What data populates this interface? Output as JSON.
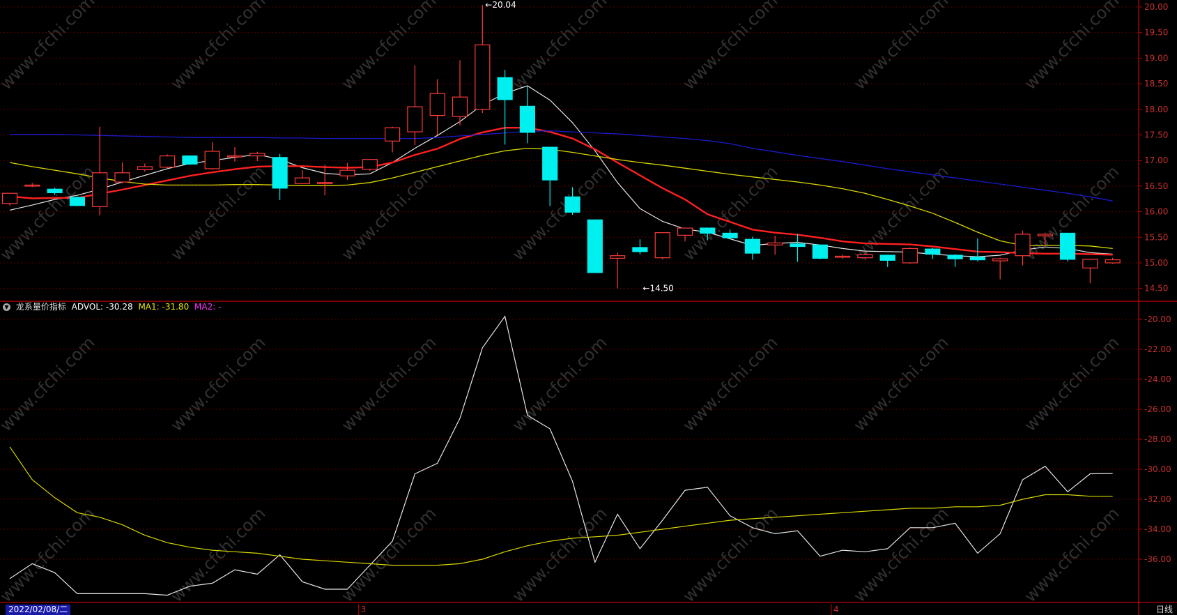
{
  "indicator": {
    "name": "龙系量价指标",
    "main_label": "ADVOL:",
    "main_value": "-30.28",
    "ma1_label": "MA1:",
    "ma1_value": "-31.80",
    "ma2_label": "MA2:",
    "ma2_value": "-"
  },
  "date_badge": "2022/02/08/二",
  "period_label": "日线",
  "month_labels": [
    "3",
    "4"
  ],
  "watermark": "www.cfchi.com",
  "colors": {
    "up": "#ff3b3b",
    "down": "#00f0f0",
    "ma_white": "#e6e6e6",
    "ma_red": "#ff2020",
    "ma_yellow": "#d8d800",
    "ma_blue": "#1a1acc",
    "axis": "#c00000",
    "grid": "#5a0000"
  },
  "price_axis_ticks": [
    "20.00",
    "19.50",
    "19.00",
    "18.50",
    "18.00",
    "17.50",
    "17.00",
    "16.50",
    "16.00",
    "15.50",
    "15.00",
    "14.50"
  ],
  "indicator_axis_ticks": [
    "-20.00",
    "-22.00",
    "-24.00",
    "-26.00",
    "-28.00",
    "-30.00",
    "-32.00",
    "-34.00",
    "-36.00"
  ],
  "chart_data": [
    {
      "type": "candlestick",
      "y_ticks": [
        14.5,
        15.0,
        15.5,
        16.0,
        16.5,
        17.0,
        17.5,
        18.0,
        18.5,
        19.0,
        19.5,
        20.0
      ],
      "ylim": [
        14.35,
        20.08
      ],
      "annotations": [
        {
          "text": "20.04",
          "value": 20.04,
          "index": 21
        },
        {
          "text": "14.50",
          "value": 14.5,
          "index": 28
        }
      ],
      "candles": [
        {
          "o": 16.16,
          "h": 16.35,
          "l": 16.12,
          "c": 16.36
        },
        {
          "o": 16.5,
          "h": 16.56,
          "l": 16.48,
          "c": 16.52
        },
        {
          "o": 16.44,
          "h": 16.47,
          "l": 16.33,
          "c": 16.37
        },
        {
          "o": 16.28,
          "h": 16.3,
          "l": 16.11,
          "c": 16.12
        },
        {
          "o": 16.1,
          "h": 17.66,
          "l": 15.93,
          "c": 16.76
        },
        {
          "o": 16.58,
          "h": 16.96,
          "l": 16.55,
          "c": 16.76
        },
        {
          "o": 16.82,
          "h": 16.94,
          "l": 16.78,
          "c": 16.88
        },
        {
          "o": 16.87,
          "h": 17.12,
          "l": 16.85,
          "c": 17.09
        },
        {
          "o": 17.09,
          "h": 17.1,
          "l": 16.91,
          "c": 16.93
        },
        {
          "o": 16.84,
          "h": 17.36,
          "l": 16.82,
          "c": 17.18
        },
        {
          "o": 17.09,
          "h": 17.26,
          "l": 16.98,
          "c": 17.09
        },
        {
          "o": 17.09,
          "h": 17.17,
          "l": 16.99,
          "c": 17.14
        },
        {
          "o": 17.06,
          "h": 17.13,
          "l": 16.23,
          "c": 16.46
        },
        {
          "o": 16.55,
          "h": 16.81,
          "l": 16.55,
          "c": 16.66
        },
        {
          "o": 16.57,
          "h": 16.92,
          "l": 16.32,
          "c": 16.57
        },
        {
          "o": 16.7,
          "h": 16.95,
          "l": 16.62,
          "c": 16.81
        },
        {
          "o": 16.83,
          "h": 17.02,
          "l": 16.8,
          "c": 17.02
        },
        {
          "o": 17.38,
          "h": 17.66,
          "l": 17.16,
          "c": 17.64
        },
        {
          "o": 17.56,
          "h": 18.86,
          "l": 17.3,
          "c": 18.05
        },
        {
          "o": 17.88,
          "h": 18.59,
          "l": 17.5,
          "c": 18.31
        },
        {
          "o": 17.86,
          "h": 18.96,
          "l": 17.69,
          "c": 18.24
        },
        {
          "o": 18.0,
          "h": 20.04,
          "l": 17.93,
          "c": 19.26
        },
        {
          "o": 18.62,
          "h": 18.77,
          "l": 17.31,
          "c": 18.19
        },
        {
          "o": 18.06,
          "h": 18.45,
          "l": 17.34,
          "c": 17.55
        },
        {
          "o": 17.26,
          "h": 17.26,
          "l": 16.11,
          "c": 16.62
        },
        {
          "o": 16.29,
          "h": 16.48,
          "l": 15.94,
          "c": 15.99
        },
        {
          "o": 15.84,
          "h": 15.84,
          "l": 14.8,
          "c": 14.81
        },
        {
          "o": 15.09,
          "h": 15.2,
          "l": 14.5,
          "c": 15.14
        },
        {
          "o": 15.3,
          "h": 15.46,
          "l": 15.17,
          "c": 15.22
        },
        {
          "o": 15.1,
          "h": 15.6,
          "l": 15.07,
          "c": 15.59
        },
        {
          "o": 15.54,
          "h": 15.68,
          "l": 15.42,
          "c": 15.68
        },
        {
          "o": 15.68,
          "h": 15.69,
          "l": 15.44,
          "c": 15.58
        },
        {
          "o": 15.58,
          "h": 15.65,
          "l": 15.46,
          "c": 15.49
        },
        {
          "o": 15.46,
          "h": 15.51,
          "l": 15.06,
          "c": 15.19
        },
        {
          "o": 15.35,
          "h": 15.53,
          "l": 15.16,
          "c": 15.39
        },
        {
          "o": 15.37,
          "h": 15.56,
          "l": 15.02,
          "c": 15.32
        },
        {
          "o": 15.35,
          "h": 15.33,
          "l": 15.07,
          "c": 15.09
        },
        {
          "o": 15.13,
          "h": 15.16,
          "l": 15.08,
          "c": 15.13
        },
        {
          "o": 15.1,
          "h": 15.21,
          "l": 15.06,
          "c": 15.16
        },
        {
          "o": 15.15,
          "h": 15.16,
          "l": 14.92,
          "c": 15.05
        },
        {
          "o": 15.0,
          "h": 15.3,
          "l": 14.98,
          "c": 15.28
        },
        {
          "o": 15.27,
          "h": 15.29,
          "l": 15.08,
          "c": 15.17
        },
        {
          "o": 15.15,
          "h": 15.17,
          "l": 14.92,
          "c": 15.08
        },
        {
          "o": 15.11,
          "h": 15.48,
          "l": 15.03,
          "c": 15.06
        },
        {
          "o": 15.04,
          "h": 15.1,
          "l": 14.68,
          "c": 15.08
        },
        {
          "o": 15.14,
          "h": 15.63,
          "l": 14.95,
          "c": 15.56
        },
        {
          "o": 15.53,
          "h": 15.59,
          "l": 15.33,
          "c": 15.56
        },
        {
          "o": 15.58,
          "h": 15.57,
          "l": 15.03,
          "c": 15.07
        },
        {
          "o": 14.9,
          "h": 15.07,
          "l": 14.6,
          "c": 15.07
        },
        {
          "o": 15.0,
          "h": 15.1,
          "l": 14.98,
          "c": 15.06
        }
      ],
      "series": [
        {
          "color_key": "ma_white",
          "values": [
            16.03,
            16.13,
            16.24,
            16.32,
            16.44,
            16.58,
            16.71,
            16.84,
            16.94,
            17.0,
            17.06,
            17.12,
            17.02,
            16.86,
            16.75,
            16.72,
            16.74,
            16.96,
            17.24,
            17.49,
            17.76,
            18.09,
            18.31,
            18.46,
            18.18,
            17.74,
            17.19,
            16.57,
            16.06,
            15.81,
            15.66,
            15.6,
            15.47,
            15.34,
            15.38,
            15.4,
            15.35,
            15.28,
            15.23,
            15.22,
            15.21,
            15.17,
            15.14,
            15.12,
            15.15,
            15.25,
            15.31,
            15.28,
            15.2,
            15.17
          ]
        },
        {
          "color_key": "ma_red",
          "values": [
            16.3,
            16.26,
            16.27,
            16.27,
            16.35,
            16.43,
            16.52,
            16.61,
            16.7,
            16.77,
            16.83,
            16.88,
            16.89,
            16.89,
            16.87,
            16.86,
            16.87,
            16.96,
            17.11,
            17.23,
            17.42,
            17.55,
            17.64,
            17.64,
            17.56,
            17.43,
            17.22,
            16.96,
            16.71,
            16.46,
            16.24,
            15.95,
            15.8,
            15.65,
            15.59,
            15.55,
            15.49,
            15.42,
            15.38,
            15.37,
            15.36,
            15.32,
            15.27,
            15.22,
            15.21,
            15.19,
            15.18,
            15.18,
            15.17,
            15.16
          ]
        },
        {
          "color_key": "ma_yellow",
          "values": [
            16.96,
            16.88,
            16.81,
            16.74,
            16.66,
            16.59,
            16.54,
            16.52,
            16.52,
            16.52,
            16.53,
            16.53,
            16.52,
            16.51,
            16.51,
            16.52,
            16.57,
            16.66,
            16.77,
            16.88,
            16.99,
            17.1,
            17.19,
            17.24,
            17.22,
            17.16,
            17.09,
            17.02,
            16.96,
            16.91,
            16.85,
            16.79,
            16.73,
            16.68,
            16.63,
            16.58,
            16.52,
            16.45,
            16.36,
            16.24,
            16.11,
            15.97,
            15.79,
            15.6,
            15.43,
            15.34,
            15.34,
            15.34,
            15.33,
            15.28
          ]
        },
        {
          "color_key": "ma_blue",
          "values": [
            17.51,
            17.51,
            17.51,
            17.5,
            17.49,
            17.48,
            17.47,
            17.46,
            17.45,
            17.45,
            17.45,
            17.45,
            17.44,
            17.44,
            17.43,
            17.43,
            17.43,
            17.43,
            17.43,
            17.45,
            17.48,
            17.51,
            17.54,
            17.57,
            17.58,
            17.56,
            17.54,
            17.52,
            17.49,
            17.46,
            17.43,
            17.39,
            17.33,
            17.24,
            17.17,
            17.1,
            17.04,
            16.98,
            16.91,
            16.84,
            16.78,
            16.72,
            16.66,
            16.6,
            16.54,
            16.48,
            16.42,
            16.36,
            16.29,
            16.21
          ]
        }
      ]
    },
    {
      "type": "line",
      "title": "龙系量价指标",
      "y_ticks": [
        -36,
        -34,
        -32,
        -30,
        -28,
        -26,
        -24,
        -22,
        -20
      ],
      "ylim": [
        -38.6,
        -19.05
      ],
      "series": [
        {
          "name": "ADVOL",
          "color_key": "ma_white",
          "values": [
            -37.3,
            -36.3,
            -36.9,
            -38.3,
            -38.3,
            -38.3,
            -38.3,
            -38.4,
            -37.8,
            -37.6,
            -36.7,
            -37.0,
            -35.7,
            -37.5,
            -38.0,
            -38.0,
            -36.4,
            -34.8,
            -30.3,
            -29.6,
            -26.6,
            -21.9,
            -19.8,
            -26.4,
            -27.3,
            -30.8,
            -36.2,
            -33.0,
            -35.3,
            -33.4,
            -31.4,
            -31.2,
            -33.1,
            -33.9,
            -34.3,
            -34.1,
            -35.8,
            -35.4,
            -35.5,
            -35.3,
            -33.9,
            -33.9,
            -33.6,
            -35.6,
            -34.3,
            -30.7,
            -29.8,
            -31.5,
            -30.3,
            -30.28
          ]
        },
        {
          "name": "MA1",
          "color_key": "ma_yellow",
          "values": [
            -28.5,
            -30.7,
            -31.9,
            -32.9,
            -33.2,
            -33.7,
            -34.4,
            -34.9,
            -35.2,
            -35.4,
            -35.5,
            -35.6,
            -35.8,
            -36.0,
            -36.1,
            -36.2,
            -36.3,
            -36.4,
            -36.4,
            -36.4,
            -36.3,
            -36.0,
            -35.5,
            -35.1,
            -34.8,
            -34.6,
            -34.5,
            -34.4,
            -34.2,
            -34.0,
            -33.8,
            -33.6,
            -33.4,
            -33.3,
            -33.2,
            -33.1,
            -33.0,
            -32.9,
            -32.8,
            -32.7,
            -32.6,
            -32.6,
            -32.5,
            -32.5,
            -32.4,
            -32.0,
            -31.7,
            -31.7,
            -31.8,
            -31.8
          ]
        }
      ]
    }
  ]
}
